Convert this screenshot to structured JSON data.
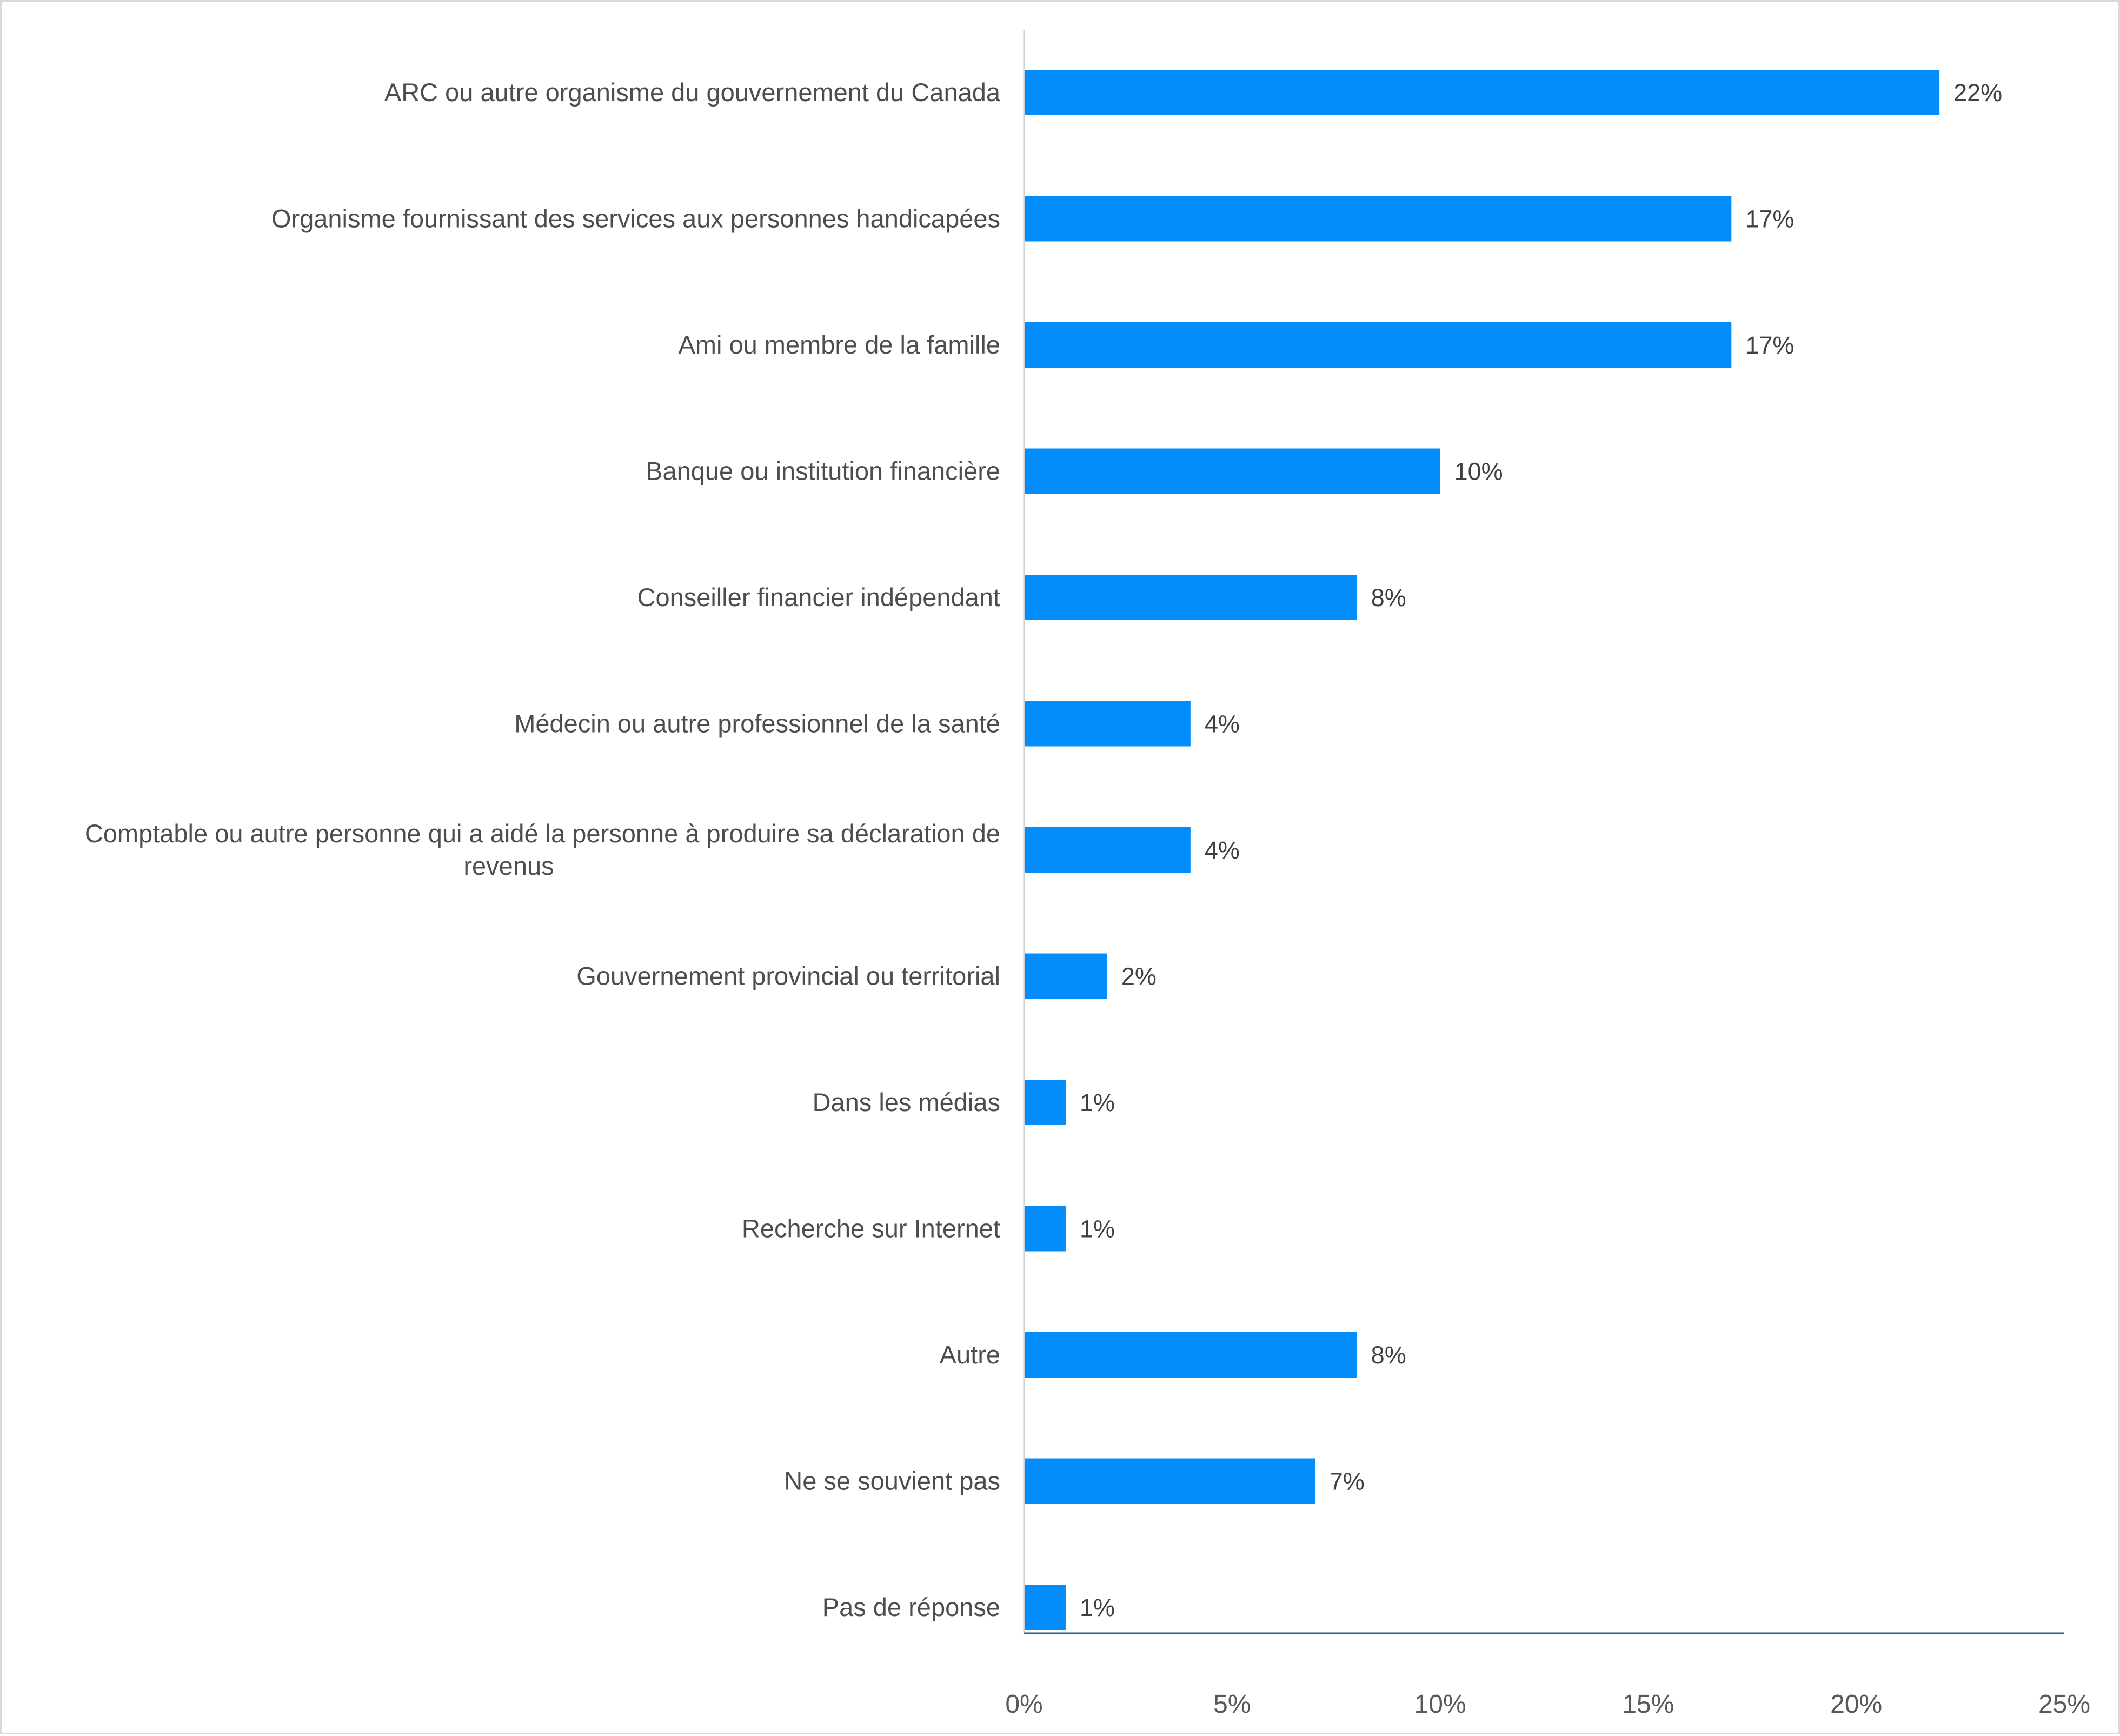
{
  "chart_data": {
    "type": "bar",
    "orientation": "horizontal",
    "title": "",
    "xlabel": "",
    "ylabel": "",
    "xlim": [
      0,
      25
    ],
    "x_ticks": [
      "0%",
      "5%",
      "10%",
      "15%",
      "20%",
      "25%"
    ],
    "grid": false,
    "bar_color": "#038cfc",
    "axis_color": "#1f6391",
    "value_suffix": "%",
    "categories": [
      [
        "ARC ou autre organisme du gouvernement du Canada"
      ],
      [
        "Organisme fournissant des services aux personnes handicapées"
      ],
      [
        "Ami ou membre de la famille"
      ],
      [
        "Banque ou institution financière"
      ],
      [
        "Conseiller financier indépendant"
      ],
      [
        "Médecin ou autre professionnel de la santé"
      ],
      [
        "Comptable ou autre personne qui a aidé la personne à produire sa déclaration de",
        "revenus"
      ],
      [
        "Gouvernement provincial ou territorial"
      ],
      [
        "Dans les médias"
      ],
      [
        "Recherche sur Internet"
      ],
      [
        "Autre"
      ],
      [
        "Ne se souvient pas"
      ],
      [
        "Pas de réponse"
      ]
    ],
    "values": [
      22,
      17,
      17,
      10,
      8,
      4,
      4,
      2,
      1,
      1,
      8,
      7,
      1
    ],
    "value_labels": [
      "22%",
      "17%",
      "17%",
      "10%",
      "8%",
      "4%",
      "4%",
      "2%",
      "1%",
      "1%",
      "8%",
      "7%",
      "1%"
    ]
  }
}
